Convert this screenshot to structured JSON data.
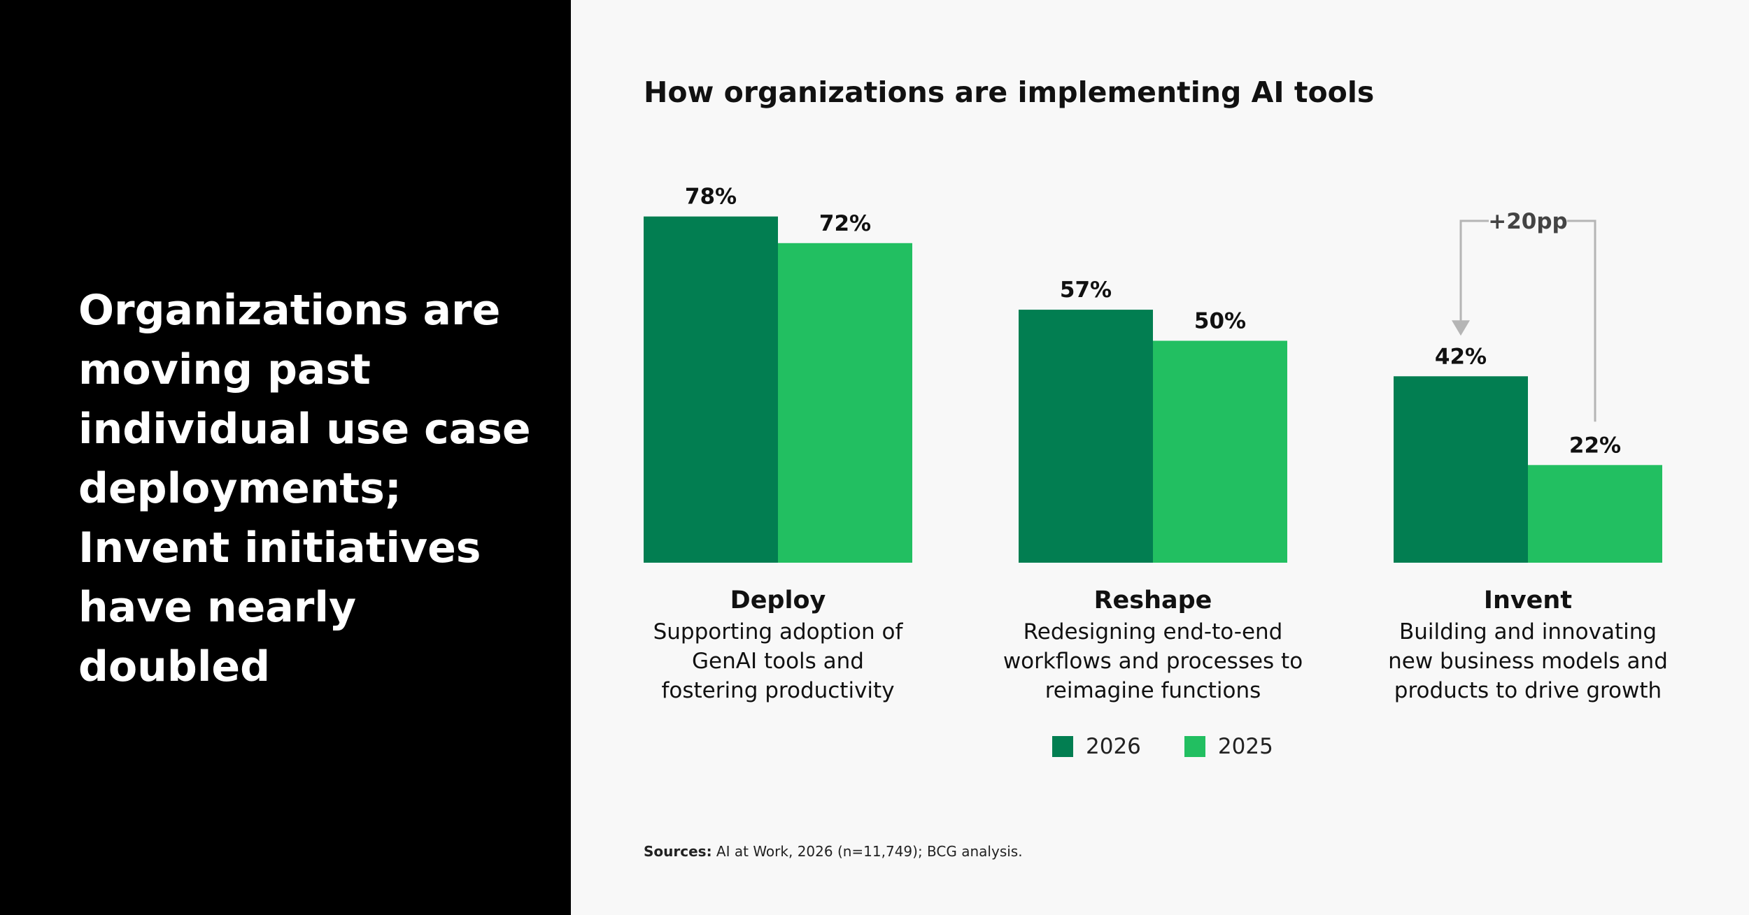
{
  "headline": "Organizations are moving past individual use case deployments; Invent initiatives have nearly doubled",
  "chart_data": {
    "type": "bar",
    "title": "How organizations are implementing AI tools",
    "categories": [
      "Deploy",
      "Reshape",
      "Invent"
    ],
    "category_descriptions": [
      [
        "Supporting adoption of",
        "GenAI tools and",
        "fostering productivity"
      ],
      [
        "Redesigning end-to-end",
        "workflows and processes to",
        "reimagine functions"
      ],
      [
        "Building and innovating",
        "new business models and",
        "products to drive growth"
      ]
    ],
    "series": [
      {
        "name": "2026",
        "values": [
          78,
          57,
          42
        ],
        "labels": [
          "78%",
          "57%",
          "42%"
        ],
        "color": "#027e51"
      },
      {
        "name": "2025",
        "values": [
          72,
          50,
          22
        ],
        "labels": [
          "72%",
          "50%",
          "22%"
        ],
        "color": "#22bf61"
      }
    ],
    "unit": "%",
    "ylim": [
      0,
      100
    ],
    "grid": false,
    "legend_position": "bottom",
    "annotation": {
      "category": "Invent",
      "label": "+20pp",
      "color": "#b5b5b5"
    }
  },
  "source": {
    "label": "Sources:",
    "text": " AI at Work, 2026 (n=11,749); BCG analysis."
  }
}
